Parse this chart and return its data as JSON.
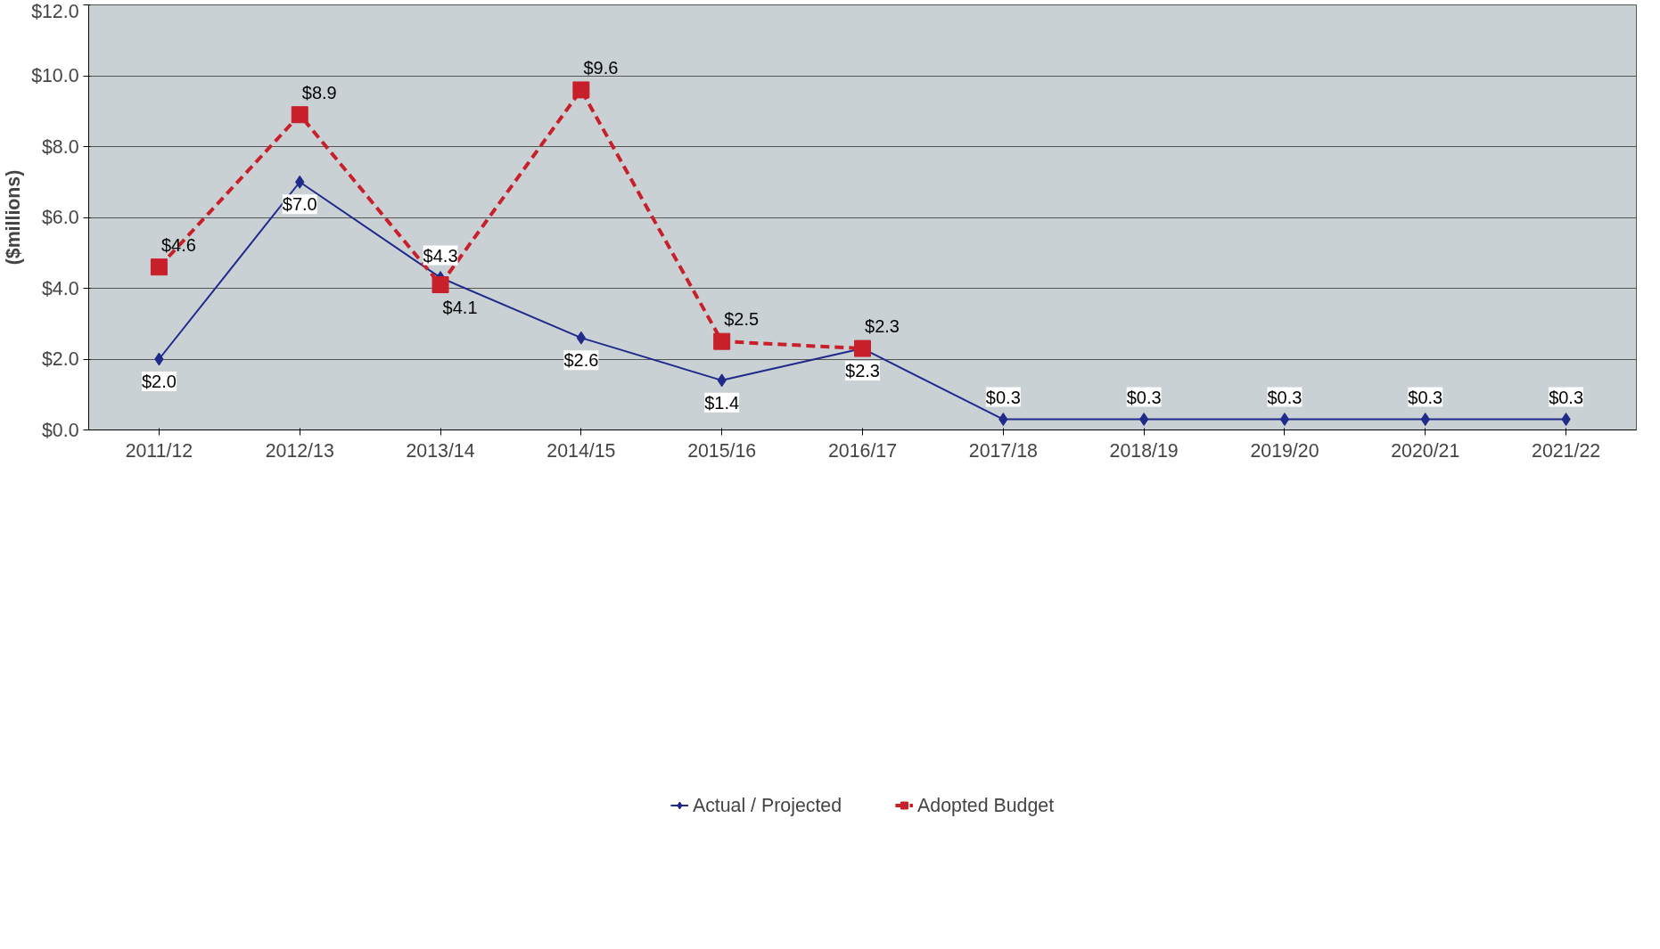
{
  "chart_data": {
    "type": "line",
    "ylabel": "($millions)",
    "categories": [
      "2011/12",
      "2012/13",
      "2013/14",
      "2014/15",
      "2015/16",
      "2016/17",
      "2017/18",
      "2018/19",
      "2019/20",
      "2020/21",
      "2021/22"
    ],
    "series": [
      {
        "name": "Actual / Projected",
        "color": "#1f2a8a",
        "marker": "diamond",
        "line_style": "solid",
        "values": [
          2.0,
          7.0,
          4.3,
          2.6,
          1.4,
          2.3,
          0.3,
          0.3,
          0.3,
          0.3,
          0.3
        ],
        "value_labels": [
          "$2.0",
          "$7.0",
          "$4.3",
          "$2.6",
          "$1.4",
          "$2.3",
          "$0.3",
          "$0.3",
          "$0.3",
          "$0.3",
          "$0.3"
        ]
      },
      {
        "name": "Adopted Budget",
        "color": "#c8202a",
        "marker": "square",
        "line_style": "dashed",
        "values": [
          4.6,
          8.9,
          4.1,
          9.6,
          2.5,
          2.3,
          null,
          null,
          null,
          null,
          null
        ],
        "value_labels": [
          "$4.6",
          "$8.9",
          "$4.1",
          "$9.6",
          "$2.5",
          "$2.3",
          null,
          null,
          null,
          null,
          null
        ]
      }
    ],
    "ylim": [
      0,
      12
    ],
    "yticks": [
      {
        "value": 0,
        "label": "$0.0"
      },
      {
        "value": 2,
        "label": "$2.0"
      },
      {
        "value": 4,
        "label": "$4.0"
      },
      {
        "value": 6,
        "label": "$6.0"
      },
      {
        "value": 8,
        "label": "$8.0"
      },
      {
        "value": 10,
        "label": "$10.0"
      },
      {
        "value": 12,
        "label": "$12.0"
      }
    ],
    "grid": "y",
    "legend": "bottom"
  }
}
